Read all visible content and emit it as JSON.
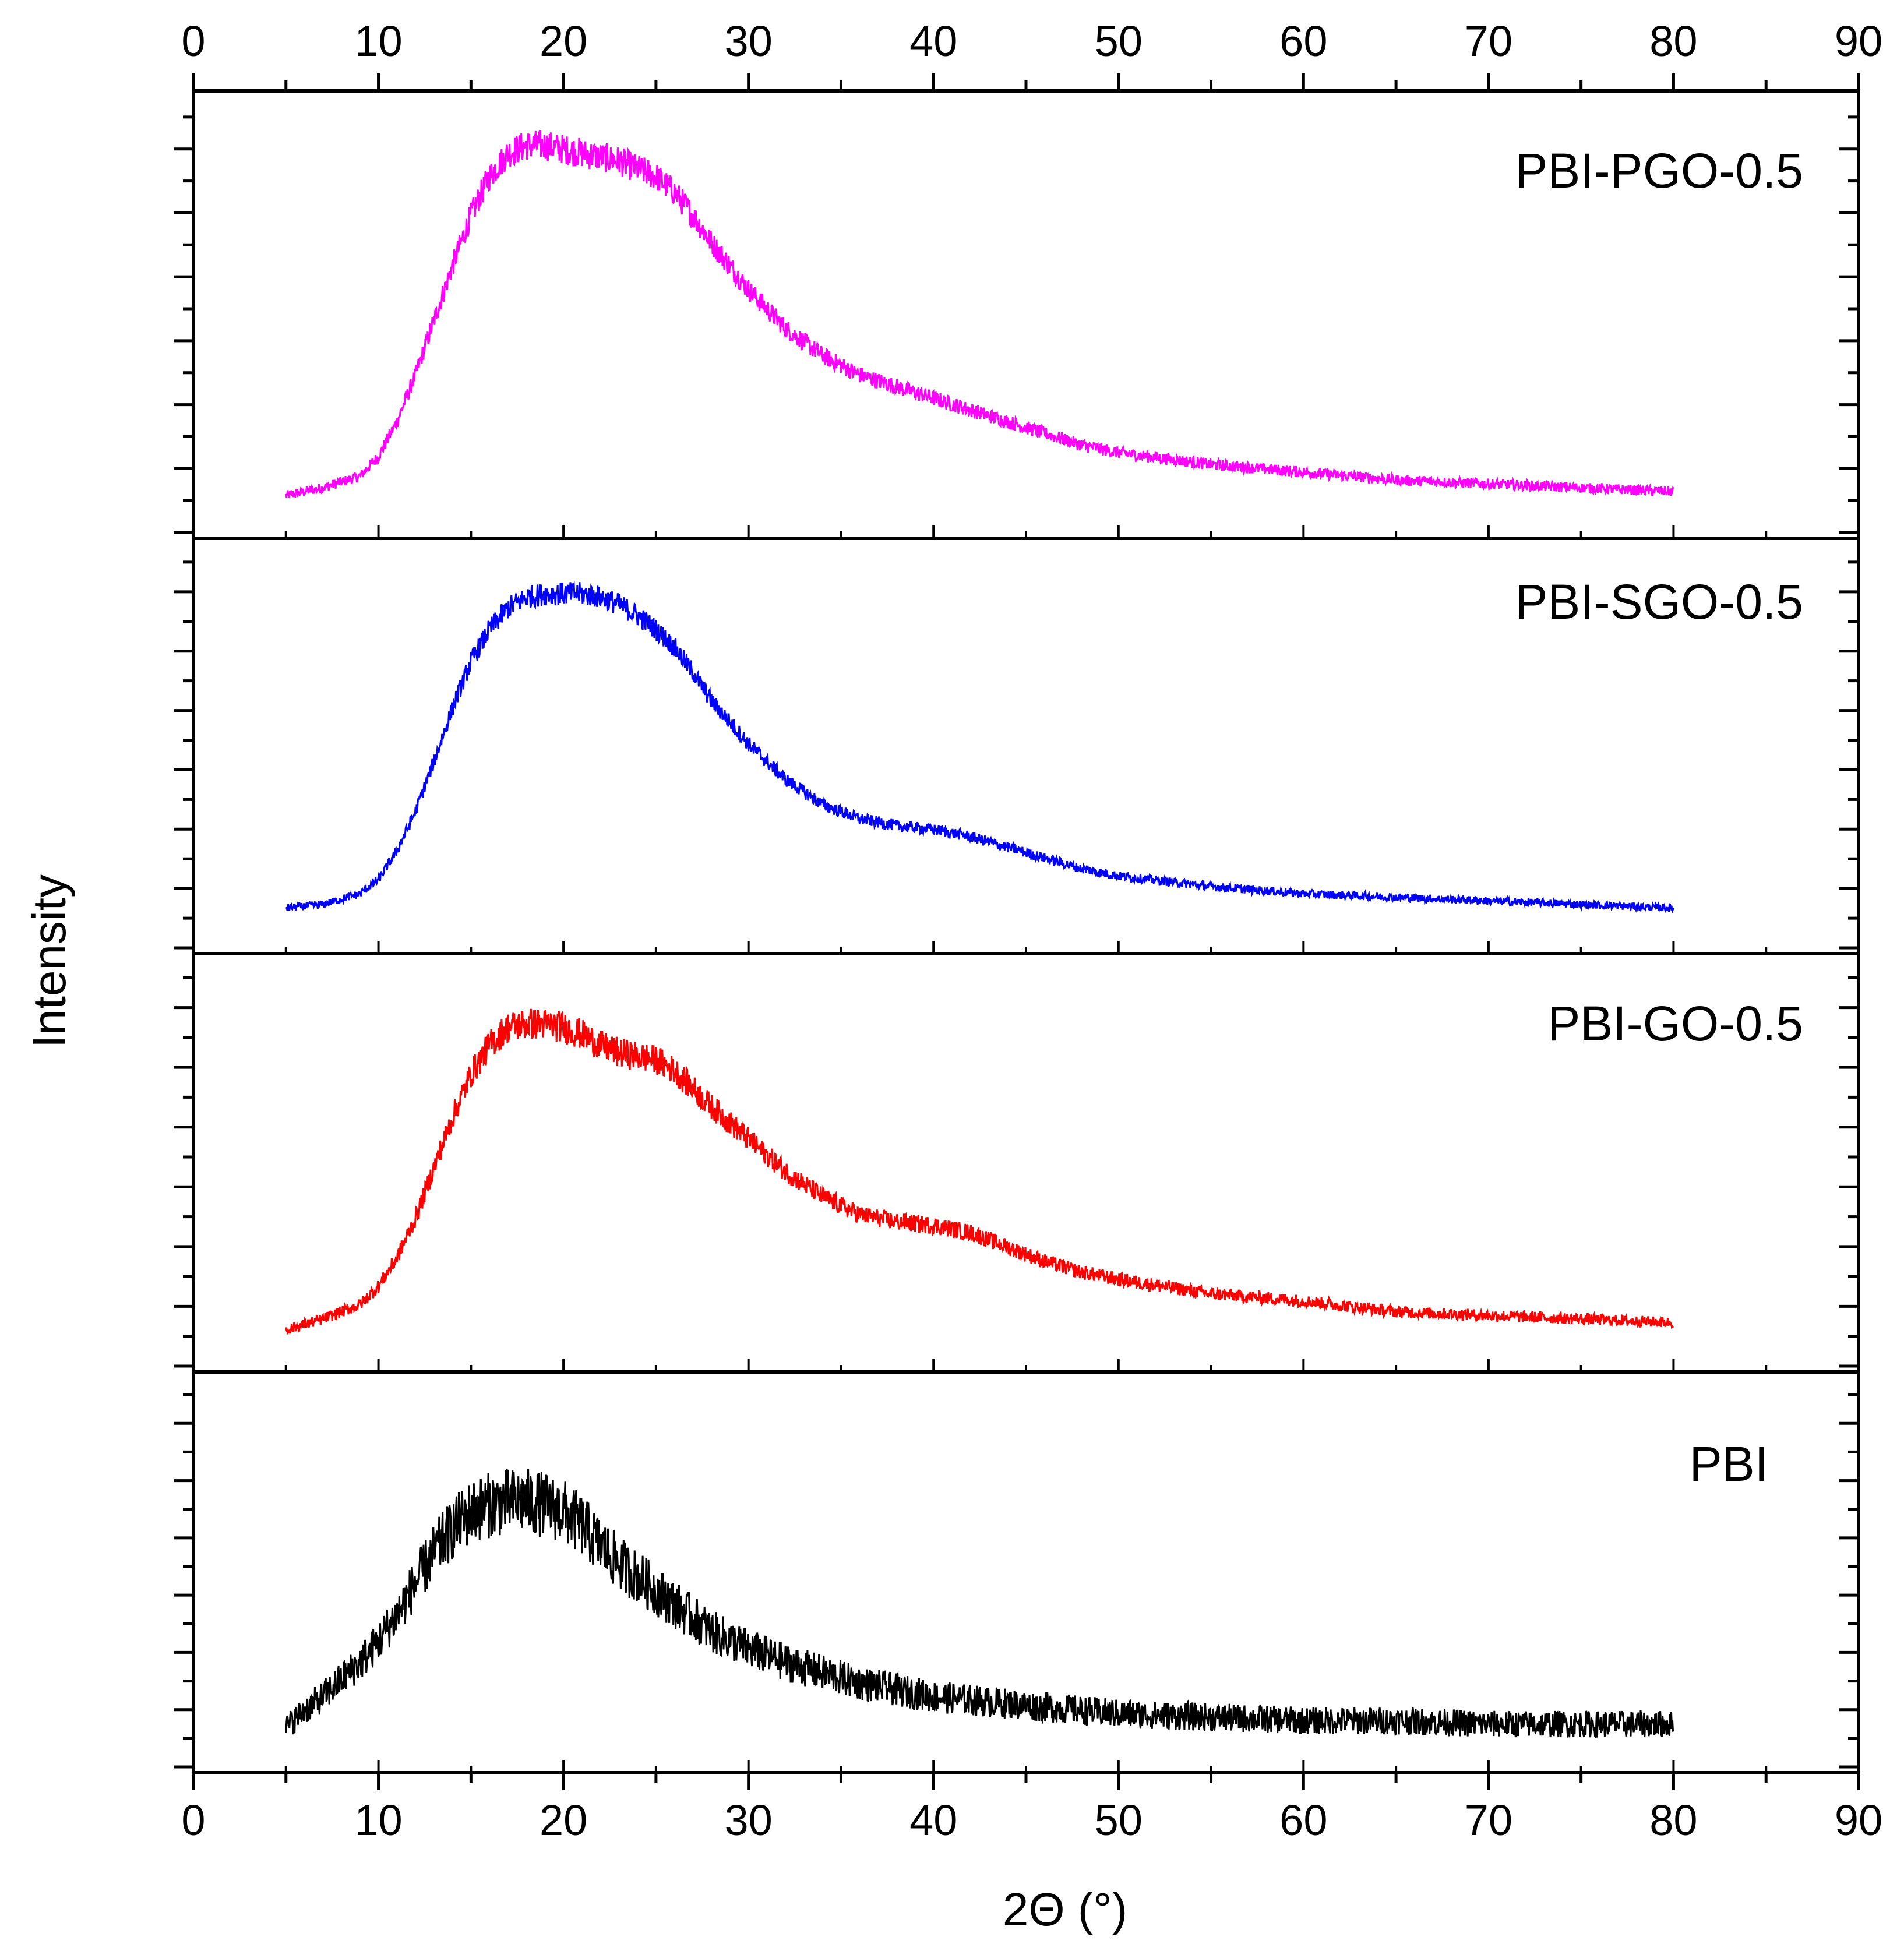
{
  "chart_data": {
    "type": "line",
    "title": "",
    "xlabel": "2Θ (°)",
    "ylabel": "Intensity",
    "xlim": [
      0,
      90
    ],
    "xticks": [
      "0",
      "10",
      "20",
      "30",
      "40",
      "50",
      "60",
      "70",
      "80",
      "90"
    ],
    "grid": false,
    "legend": "none",
    "panels": [
      {
        "name": "PBI-PGO-0.5",
        "label": "PBI-PGO-0.5",
        "color": "#ff00ff",
        "x": [
          5,
          7,
          9,
          10,
          11,
          12,
          13,
          14,
          15,
          16,
          17,
          18,
          19,
          20,
          21,
          22,
          23,
          24,
          25,
          26,
          27,
          28,
          30,
          32,
          34,
          36,
          38,
          40,
          42,
          44,
          46,
          48,
          50,
          55,
          60,
          65,
          70,
          75,
          80
        ],
        "y": [
          0.02,
          0.04,
          0.07,
          0.12,
          0.21,
          0.33,
          0.47,
          0.61,
          0.74,
          0.84,
          0.9,
          0.92,
          0.92,
          0.91,
          0.9,
          0.89,
          0.88,
          0.86,
          0.84,
          0.8,
          0.74,
          0.67,
          0.55,
          0.45,
          0.38,
          0.33,
          0.3,
          0.27,
          0.24,
          0.21,
          0.18,
          0.15,
          0.13,
          0.1,
          0.08,
          0.06,
          0.05,
          0.04,
          0.03
        ],
        "noise": 0.03
      },
      {
        "name": "PBI-SGO-0.5",
        "label": "PBI-SGO-0.5",
        "color": "#0000ff",
        "x": [
          5,
          7,
          9,
          10,
          11,
          12,
          13,
          14,
          15,
          16,
          17,
          18,
          19,
          20,
          21,
          22,
          23,
          24,
          25,
          26,
          27,
          28,
          30,
          32,
          34,
          36,
          38,
          40,
          42,
          44,
          46,
          48,
          50,
          55,
          60,
          65,
          70,
          75,
          80
        ],
        "y": [
          0.03,
          0.04,
          0.07,
          0.11,
          0.19,
          0.3,
          0.44,
          0.59,
          0.72,
          0.81,
          0.87,
          0.9,
          0.91,
          0.91,
          0.91,
          0.9,
          0.88,
          0.85,
          0.81,
          0.76,
          0.69,
          0.61,
          0.49,
          0.39,
          0.32,
          0.28,
          0.26,
          0.25,
          0.23,
          0.2,
          0.17,
          0.14,
          0.12,
          0.09,
          0.07,
          0.06,
          0.05,
          0.04,
          0.03
        ],
        "noise": 0.025
      },
      {
        "name": "PBI-GO-0.5",
        "label": "PBI-GO-0.5",
        "color": "#ff0000",
        "x": [
          5,
          7,
          9,
          10,
          11,
          12,
          13,
          14,
          15,
          16,
          17,
          18,
          19,
          20,
          21,
          22,
          23,
          24,
          25,
          26,
          27,
          28,
          30,
          32,
          34,
          36,
          38,
          40,
          42,
          44,
          46,
          48,
          50,
          55,
          60,
          65,
          70,
          75,
          80
        ],
        "y": [
          0.02,
          0.05,
          0.09,
          0.14,
          0.22,
          0.33,
          0.47,
          0.61,
          0.73,
          0.81,
          0.86,
          0.87,
          0.87,
          0.86,
          0.84,
          0.81,
          0.79,
          0.78,
          0.77,
          0.74,
          0.69,
          0.64,
          0.55,
          0.46,
          0.39,
          0.34,
          0.32,
          0.31,
          0.29,
          0.25,
          0.21,
          0.18,
          0.16,
          0.12,
          0.1,
          0.07,
          0.06,
          0.05,
          0.04
        ],
        "noise": 0.035
      },
      {
        "name": "PBI",
        "label": "PBI",
        "color": "#000000",
        "x": [
          5,
          6,
          7,
          8,
          9,
          10,
          11,
          12,
          13,
          14,
          15,
          16,
          17,
          18,
          19,
          20,
          21,
          22,
          23,
          24,
          25,
          26,
          27,
          28,
          30,
          32,
          34,
          36,
          38,
          40,
          42,
          44,
          46,
          48,
          50,
          55,
          60,
          65,
          70,
          75,
          80
        ],
        "y": [
          0.03,
          0.08,
          0.12,
          0.17,
          0.22,
          0.28,
          0.36,
          0.45,
          0.54,
          0.61,
          0.66,
          0.68,
          0.69,
          0.69,
          0.68,
          0.66,
          0.62,
          0.56,
          0.51,
          0.47,
          0.43,
          0.39,
          0.35,
          0.31,
          0.26,
          0.22,
          0.19,
          0.16,
          0.14,
          0.12,
          0.11,
          0.1,
          0.09,
          0.08,
          0.07,
          0.06,
          0.05,
          0.05,
          0.04,
          0.04,
          0.04
        ],
        "noise": 0.09
      }
    ]
  }
}
